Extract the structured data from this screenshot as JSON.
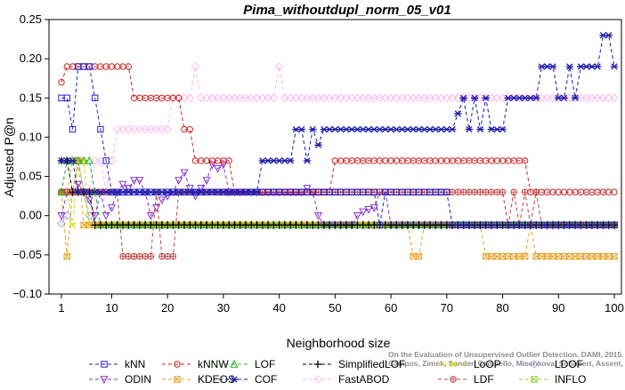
{
  "chart_data": {
    "type": "line",
    "title": "Pima_withoutdupl_norm_05_v01",
    "xlabel": "Neighborhood size",
    "ylabel": "Adjusted P@n",
    "xlim": [
      1,
      100
    ],
    "ylim": [
      -0.1,
      0.25
    ],
    "xticks": [
      1,
      10,
      20,
      30,
      40,
      50,
      60,
      70,
      80,
      90,
      100
    ],
    "yticks": [
      -0.1,
      -0.05,
      0.0,
      0.05,
      0.1,
      0.15,
      0.2,
      0.25
    ],
    "ytick_labels": [
      "−0.10",
      "−0.05",
      "0.00",
      "0.05",
      "0.10",
      "0.15",
      "0.20",
      "0.25"
    ],
    "grid": false,
    "legend_position": "bottom",
    "series": [
      {
        "name": "kNN",
        "color": "#2222cc",
        "marker": "square",
        "points": [
          [
            1,
            0.15
          ],
          [
            2,
            0.15
          ],
          [
            3,
            0.11
          ],
          [
            4,
            0.19
          ],
          [
            5,
            0.19
          ],
          [
            6,
            0.19
          ],
          [
            7,
            0.15
          ],
          [
            8,
            0.11
          ],
          [
            9,
            0.07
          ],
          [
            10,
            0.03
          ],
          [
            30,
            0.03
          ],
          [
            50,
            0.03
          ],
          [
            57,
            0.03
          ],
          [
            58,
            -0.012
          ],
          [
            59,
            0.03
          ],
          [
            60,
            0.03
          ],
          [
            70,
            0.03
          ],
          [
            71,
            -0.012
          ],
          [
            100,
            -0.012
          ]
        ]
      },
      {
        "name": "kNNW",
        "color": "#cc2222",
        "marker": "circle",
        "points": [
          [
            1,
            0.17
          ],
          [
            2,
            0.19
          ],
          [
            13,
            0.19
          ],
          [
            14,
            0.15
          ],
          [
            22,
            0.15
          ],
          [
            23,
            0.11
          ],
          [
            24,
            0.11
          ],
          [
            25,
            0.07
          ],
          [
            31,
            0.07
          ],
          [
            32,
            0.03
          ],
          [
            49,
            0.03
          ],
          [
            50,
            0.07
          ],
          [
            84,
            0.07
          ],
          [
            85,
            0.03
          ],
          [
            100,
            0.03
          ]
        ]
      },
      {
        "name": "LOF",
        "color": "#22aa22",
        "marker": "triangle-up",
        "points": [
          [
            1,
            0.03
          ],
          [
            2,
            0.07
          ],
          [
            6,
            0.07
          ],
          [
            7,
            0.03
          ],
          [
            8,
            -0.012
          ],
          [
            100,
            -0.012
          ]
        ]
      },
      {
        "name": "SimplifiedLOF",
        "color": "#000000",
        "marker": "plus",
        "points": [
          [
            1,
            0.07
          ],
          [
            2,
            0.07
          ],
          [
            3,
            0.03
          ],
          [
            6,
            0.03
          ],
          [
            7,
            -0.012
          ],
          [
            100,
            -0.012
          ]
        ]
      },
      {
        "name": "LoOP",
        "color": "#dddd00",
        "marker": "x",
        "points": [
          [
            1,
            0.03
          ],
          [
            2,
            0.03
          ],
          [
            3,
            -0.012
          ],
          [
            4,
            0.07
          ],
          [
            5,
            0.07
          ],
          [
            6,
            -0.012
          ],
          [
            100,
            -0.012
          ]
        ]
      },
      {
        "name": "LDOF",
        "color": "#aaaadd",
        "marker": "diamond",
        "points": [
          [
            1,
            -0.01
          ],
          [
            2,
            0.0
          ],
          [
            3,
            0.03
          ],
          [
            4,
            0.07
          ],
          [
            5,
            0.03
          ],
          [
            6,
            0.0
          ],
          [
            7,
            -0.012
          ],
          [
            100,
            -0.012
          ]
        ]
      },
      {
        "name": "ODIN",
        "color": "#8833cc",
        "marker": "triangle-down",
        "points": [
          [
            1,
            0.0
          ],
          [
            2,
            0.03
          ],
          [
            3,
            0.03
          ],
          [
            4,
            0.04
          ],
          [
            5,
            0.03
          ],
          [
            6,
            0.02
          ],
          [
            7,
            0.0
          ],
          [
            8,
            0.03
          ],
          [
            9,
            0.0
          ],
          [
            10,
            0.01
          ],
          [
            11,
            0.03
          ],
          [
            12,
            0.04
          ],
          [
            13,
            0.035
          ],
          [
            14,
            0.045
          ],
          [
            15,
            0.045
          ],
          [
            16,
            0.03
          ],
          [
            17,
            0.0
          ],
          [
            18,
            0.01
          ],
          [
            19,
            0.02
          ],
          [
            20,
            0.025
          ],
          [
            21,
            0.03
          ],
          [
            22,
            0.045
          ],
          [
            23,
            0.055
          ],
          [
            24,
            0.035
          ],
          [
            25,
            0.025
          ],
          [
            26,
            0.035
          ],
          [
            27,
            0.045
          ],
          [
            28,
            0.065
          ],
          [
            29,
            0.06
          ],
          [
            30,
            0.065
          ],
          [
            31,
            0.03
          ],
          [
            40,
            0.03
          ],
          [
            44,
            0.03
          ],
          [
            45,
            0.035
          ],
          [
            46,
            0.03
          ],
          [
            47,
            0.0
          ],
          [
            48,
            -0.012
          ],
          [
            53,
            -0.012
          ],
          [
            54,
            0.0
          ],
          [
            55,
            0.005
          ],
          [
            56,
            0.008
          ],
          [
            57,
            0.01
          ],
          [
            58,
            0.03
          ],
          [
            59,
            0.03
          ],
          [
            60,
            -0.012
          ],
          [
            100,
            -0.012
          ]
        ]
      },
      {
        "name": "KDEOS",
        "color": "#e6a020",
        "marker": "square-x",
        "points": [
          [
            1,
            0.03
          ],
          [
            2,
            -0.052
          ],
          [
            3,
            0.03
          ],
          [
            4,
            0.07
          ],
          [
            5,
            -0.012
          ],
          [
            63,
            -0.012
          ],
          [
            64,
            -0.052
          ],
          [
            65,
            -0.052
          ],
          [
            66,
            -0.012
          ],
          [
            76,
            -0.012
          ],
          [
            77,
            -0.052
          ],
          [
            84,
            -0.052
          ],
          [
            85,
            -0.012
          ],
          [
            86,
            -0.052
          ],
          [
            100,
            -0.052
          ]
        ]
      },
      {
        "name": "COF",
        "color": "#1a1aaa",
        "marker": "asterisk",
        "points": [
          [
            1,
            0.07
          ],
          [
            2,
            0.07
          ],
          [
            3,
            0.07
          ],
          [
            4,
            0.03
          ],
          [
            10,
            0.03
          ],
          [
            36,
            0.03
          ],
          [
            37,
            0.07
          ],
          [
            42,
            0.07
          ],
          [
            43,
            0.11
          ],
          [
            44,
            0.11
          ],
          [
            45,
            0.07
          ],
          [
            46,
            0.11
          ],
          [
            47,
            0.09
          ],
          [
            48,
            0.11
          ],
          [
            71,
            0.11
          ],
          [
            72,
            0.13
          ],
          [
            73,
            0.15
          ],
          [
            74,
            0.11
          ],
          [
            75,
            0.15
          ],
          [
            76,
            0.11
          ],
          [
            77,
            0.15
          ],
          [
            78,
            0.11
          ],
          [
            80,
            0.11
          ],
          [
            81,
            0.15
          ],
          [
            86,
            0.15
          ],
          [
            87,
            0.19
          ],
          [
            89,
            0.19
          ],
          [
            90,
            0.15
          ],
          [
            91,
            0.15
          ],
          [
            92,
            0.19
          ],
          [
            93,
            0.15
          ],
          [
            94,
            0.19
          ],
          [
            97,
            0.19
          ],
          [
            98,
            0.23
          ],
          [
            99,
            0.23
          ],
          [
            100,
            0.19
          ]
        ]
      },
      {
        "name": "FastABOD",
        "color": "#ffbbee",
        "marker": "diamond",
        "points": [
          [
            1,
            0.03
          ],
          [
            5,
            0.03
          ],
          [
            6,
            0.03
          ],
          [
            7,
            0.07
          ],
          [
            8,
            0.07
          ],
          [
            9,
            0.03
          ],
          [
            10,
            0.07
          ],
          [
            11,
            0.11
          ],
          [
            20,
            0.11
          ],
          [
            21,
            0.15
          ],
          [
            24,
            0.15
          ],
          [
            25,
            0.19
          ],
          [
            26,
            0.15
          ],
          [
            39,
            0.15
          ],
          [
            40,
            0.19
          ],
          [
            41,
            0.15
          ],
          [
            100,
            0.15
          ]
        ]
      },
      {
        "name": "LDF",
        "color": "#c04040",
        "marker": "circle-plus",
        "points": [
          [
            1,
            0.03
          ],
          [
            11,
            0.03
          ],
          [
            12,
            -0.052
          ],
          [
            17,
            -0.052
          ],
          [
            18,
            0.03
          ],
          [
            19,
            -0.052
          ],
          [
            21,
            -0.052
          ],
          [
            22,
            0.03
          ],
          [
            80,
            0.03
          ],
          [
            81,
            -0.012
          ],
          [
            82,
            0.03
          ],
          [
            83,
            -0.012
          ],
          [
            84,
            0.03
          ],
          [
            85,
            -0.012
          ],
          [
            86,
            0.03
          ],
          [
            87,
            -0.012
          ],
          [
            100,
            -0.012
          ]
        ]
      },
      {
        "name": "INFLO",
        "color": "#99cc33",
        "marker": "square-x",
        "points": [
          [
            1,
            0.03
          ],
          [
            2,
            0.03
          ],
          [
            3,
            0.07
          ],
          [
            4,
            0.07
          ],
          [
            5,
            0.03
          ],
          [
            6,
            -0.012
          ],
          [
            100,
            -0.012
          ]
        ]
      }
    ],
    "legend_columns": [
      [
        "kNN",
        "ODIN"
      ],
      [
        "kNNW",
        "KDEOS"
      ],
      [
        "LOF",
        "COF"
      ],
      [
        "SimplifiedLOF",
        "FastABOD"
      ],
      [
        "LoOP",
        "LDF"
      ],
      [
        "LDOF",
        "INFLO"
      ]
    ]
  },
  "watermark": {
    "line1": "Campos, Zimek, Sander, Campello, Micenkova, Schubert, Assent, Houle",
    "line2": "On the Evaluation of Unsupervised Outlier Detection. DAMI, 2015."
  }
}
